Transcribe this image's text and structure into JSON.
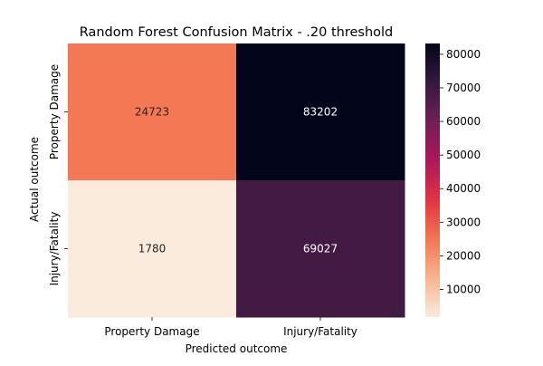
{
  "chart_data": {
    "type": "heatmap",
    "title": "Random Forest Confusion Matrix - .20 threshold",
    "xlabel": "Predicted outcome",
    "ylabel": "Actual outcome",
    "x_categories": [
      "Property Damage",
      "Injury/Fatality"
    ],
    "y_categories": [
      "Property Damage",
      "Injury/Fatality"
    ],
    "values": [
      [
        24723,
        83202
      ],
      [
        1780,
        69027
      ]
    ],
    "colorbar": {
      "min": 1780,
      "max": 83202,
      "ticks": [
        10000,
        20000,
        30000,
        40000,
        50000,
        60000,
        70000,
        80000
      ],
      "colormap": "rocket_r",
      "stops": [
        "#faebdd",
        "#f6b48f",
        "#f37651",
        "#e13342",
        "#ad1759",
        "#701f57",
        "#35193e",
        "#03051a"
      ]
    },
    "annotation_color_light": "#ffffff",
    "annotation_color_dark": "#262626"
  }
}
